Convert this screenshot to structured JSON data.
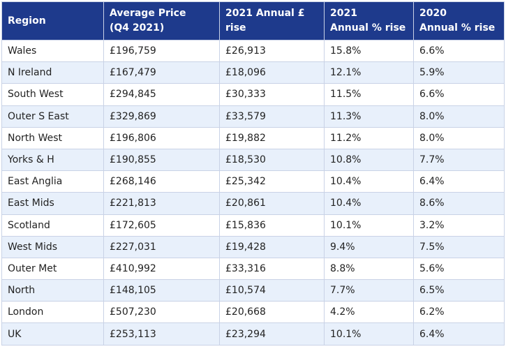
{
  "table": {
    "headers": [
      [
        "Region"
      ],
      [
        "Average Price",
        "(Q4 2021)"
      ],
      [
        "2021 Annual £ rise"
      ],
      [
        "2021",
        "Annual % rise"
      ],
      [
        "2020",
        "Annual % rise"
      ]
    ],
    "rows": [
      [
        "Wales",
        "£196,759",
        "£26,913",
        "15.8%",
        "6.6%"
      ],
      [
        "N Ireland",
        "£167,479",
        "£18,096",
        "12.1%",
        "5.9%"
      ],
      [
        "South West",
        "£294,845",
        "£30,333",
        "11.5%",
        "6.6%"
      ],
      [
        "Outer S East",
        "£329,869",
        "£33,579",
        "11.3%",
        "8.0%"
      ],
      [
        "North West",
        "£196,806",
        "£19,882",
        "11.2%",
        "8.0%"
      ],
      [
        "Yorks & H",
        "£190,855",
        "£18,530",
        "10.8%",
        "7.7%"
      ],
      [
        "East Anglia",
        "£268,146",
        "£25,342",
        "10.4%",
        "6.4%"
      ],
      [
        "East Mids",
        "£221,813",
        "£20,861",
        "10.4%",
        "8.6%"
      ],
      [
        "Scotland",
        "£172,605",
        "£15,836",
        "10.1%",
        "3.2%"
      ],
      [
        "West Mids",
        "£227,031",
        "£19,428",
        "9.4%",
        "7.5%"
      ],
      [
        "Outer Met",
        "£410,992",
        "£33,316",
        "8.8%",
        "5.6%"
      ],
      [
        "North",
        "£148,105",
        "£10,574",
        "7.7%",
        "6.5%"
      ],
      [
        "London",
        "£507,230",
        "£20,668",
        "4.2%",
        "6.2%"
      ],
      [
        "UK",
        "£253,113",
        "£23,294",
        "10.1%",
        "6.4%"
      ]
    ]
  },
  "colors": {
    "header_bg": "#1e3a8c",
    "header_text": "#ffffff",
    "row_alt_bg": "#e8f0fb",
    "border": "#c9d2e6"
  }
}
